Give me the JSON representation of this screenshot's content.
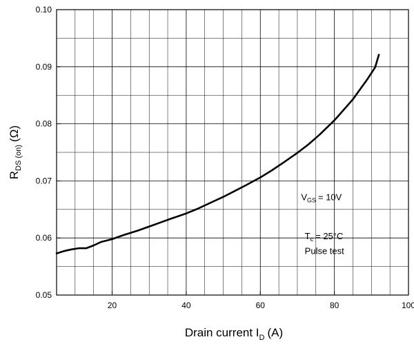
{
  "chart_data": {
    "type": "line",
    "xlim": [
      5,
      100
    ],
    "ylim": [
      0.05,
      0.1
    ],
    "x_ticks": [
      20,
      40,
      60,
      80,
      100
    ],
    "y_ticks": [
      0.05,
      0.06,
      0.07,
      0.08,
      0.09,
      0.1
    ],
    "x_tick_labels": [
      "20",
      "40",
      "60",
      "80",
      "100"
    ],
    "y_tick_labels": [
      "0.05",
      "0.06",
      "0.07",
      "0.08",
      "0.09",
      "0.10"
    ],
    "x_minor_step": 5,
    "y_minor_step": 0.005,
    "grid": true,
    "xlabel": {
      "main": "Drain current I",
      "sub": "D",
      "unit": "(A)"
    },
    "ylabel": {
      "main": "R",
      "sub": "DS (on)",
      "unit": "(Ω)"
    },
    "annotations": {
      "vgs": {
        "main": "V",
        "sub": "GS",
        "rest": "= 10V",
        "x": 71,
        "y": 0.0666
      },
      "tc": {
        "main": "T",
        "sub": "c",
        "rest": "= 25°C",
        "x": 72,
        "y": 0.0598
      },
      "pulse": {
        "text": "Pulse test",
        "x": 72,
        "y": 0.0572
      }
    },
    "series": [
      {
        "x": [
          5,
          7,
          9,
          11,
          13,
          15,
          17,
          20,
          23,
          27,
          30,
          33,
          36,
          40,
          43,
          46,
          50,
          53,
          56,
          60,
          63,
          66,
          70,
          73,
          76,
          80,
          83,
          85,
          87,
          89,
          90,
          91,
          92
        ],
        "y": [
          0.0573,
          0.0577,
          0.058,
          0.0582,
          0.0582,
          0.0587,
          0.0593,
          0.0598,
          0.0605,
          0.0613,
          0.062,
          0.0627,
          0.0634,
          0.0643,
          0.0651,
          0.066,
          0.0672,
          0.0682,
          0.0692,
          0.0706,
          0.0718,
          0.0731,
          0.0749,
          0.0764,
          0.0781,
          0.0806,
          0.0828,
          0.0843,
          0.0861,
          0.0879,
          0.0889,
          0.0899,
          0.0921
        ]
      }
    ]
  }
}
